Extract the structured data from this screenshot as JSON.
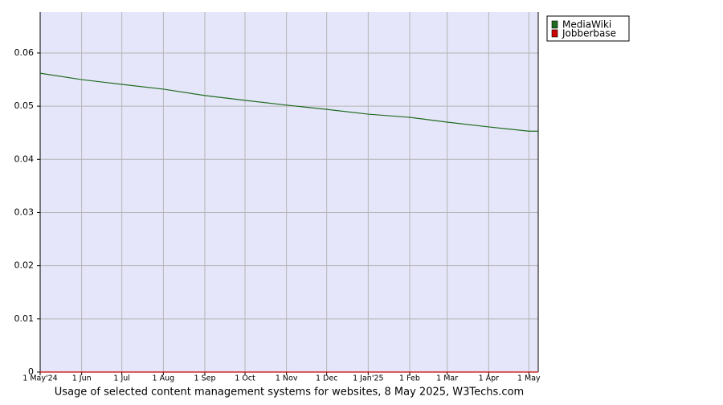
{
  "chart_data": {
    "type": "line",
    "title": "Usage of selected content management systems for websites, 8 May 2025, W3Techs.com",
    "x": [
      "2024-05-01",
      "2024-06-01",
      "2024-07-01",
      "2024-08-01",
      "2024-09-01",
      "2024-10-01",
      "2024-11-01",
      "2024-12-01",
      "2025-01-01",
      "2025-02-01",
      "2025-03-01",
      "2025-04-01",
      "2025-05-01",
      "2025-05-08"
    ],
    "series": [
      {
        "name": "MediaWiki",
        "color": "#1f6b1f",
        "values": [
          0.0562,
          0.055,
          0.0541,
          0.0532,
          0.052,
          0.0511,
          0.0502,
          0.0494,
          0.0485,
          0.0479,
          0.047,
          0.0461,
          0.0453,
          0.0453
        ]
      },
      {
        "name": "Jobberbase",
        "color": "#cc0000",
        "values": [
          0,
          0,
          0,
          0,
          0,
          0,
          0,
          0,
          0,
          0,
          0,
          0,
          0,
          0
        ]
      }
    ],
    "xlim": [
      "2024-05-01",
      "2025-05-08"
    ],
    "xticks": [
      {
        "value": "2024-05-01",
        "label": "1 May'24"
      },
      {
        "value": "2024-06-01",
        "label": "1 Jun"
      },
      {
        "value": "2024-07-01",
        "label": "1 Jul"
      },
      {
        "value": "2024-08-01",
        "label": "1 Aug"
      },
      {
        "value": "2024-09-01",
        "label": "1 Sep"
      },
      {
        "value": "2024-10-01",
        "label": "1 Oct"
      },
      {
        "value": "2024-11-01",
        "label": "1 Nov"
      },
      {
        "value": "2024-12-01",
        "label": "1 Dec"
      },
      {
        "value": "2025-01-01",
        "label": "1 Jan'25"
      },
      {
        "value": "2025-02-01",
        "label": "1 Feb"
      },
      {
        "value": "2025-03-01",
        "label": "1 Mar"
      },
      {
        "value": "2025-04-01",
        "label": "1 Apr"
      },
      {
        "value": "2025-05-01",
        "label": "1 May"
      }
    ],
    "ylim": [
      0,
      0.0677
    ],
    "yticks": [
      0,
      0.01,
      0.02,
      0.03,
      0.04,
      0.05,
      0.06
    ],
    "grid": true,
    "legend": "right"
  }
}
